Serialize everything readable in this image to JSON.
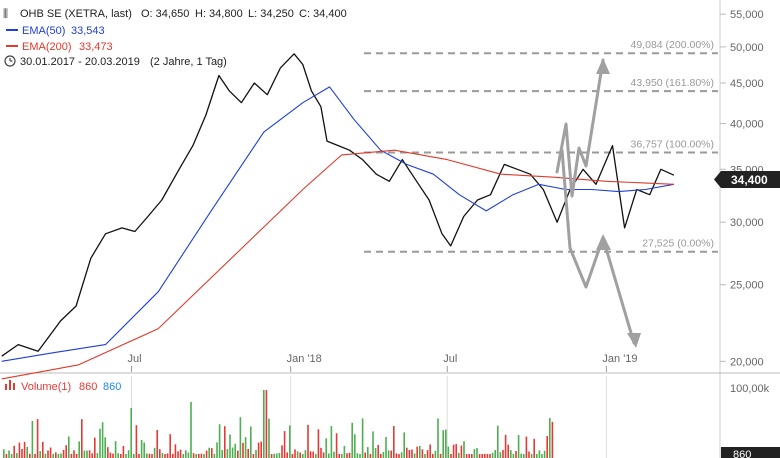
{
  "header": {
    "symbol": "OHB SE (XETRA, last)",
    "open": "O: 34,650",
    "high": "H: 34,800",
    "low": "L: 34,250",
    "close": "C: 34,400",
    "ema50_label": "EMA(50)",
    "ema50_value": "33,543",
    "ema200_label": "EMA(200)",
    "ema200_value": "33,473",
    "range": "30.01.2017 - 20.03.2019",
    "period": "(2 Jahre, 1 Tag)",
    "icon_chart": "candlestick-icon",
    "icon_clock": "clock-icon"
  },
  "last_price_badge": "34,400",
  "volume": {
    "label": "Volume(1)",
    "value_red": "860",
    "value_blue": "860",
    "axis_top": "100,00k",
    "axis_badge": "860"
  },
  "colors": {
    "ema50": "#1f3fd6",
    "ema200": "#e03a2a",
    "price": "#111111",
    "fib_line": "#9a9a9a",
    "arrow": "#a0a0a0",
    "vol_up": "#4caf50",
    "vol_down": "#e53935",
    "badge_bg": "#222222"
  },
  "chart_data": {
    "type": "line",
    "title": "OHB SE (XETRA, last)",
    "x_ticks": [
      "Jul",
      "Jan '18",
      "Jul",
      "Jan '19"
    ],
    "y_scale": "log",
    "y_ticks": [
      "55,000",
      "50,000",
      "45,000",
      "40,000",
      "35,000",
      "30,000",
      "25,000",
      "20,000"
    ],
    "ylim": [
      19.5,
      56
    ],
    "fib_levels": [
      {
        "label": "49,084 (200.00%)",
        "value": 49.084
      },
      {
        "label": "43,950 (161.80%)",
        "value": 43.95
      },
      {
        "label": "36,757 (100.00%)",
        "value": 36.757
      },
      {
        "label": "27,525 (0.00%)",
        "value": 27.525
      }
    ],
    "series": [
      {
        "name": "OHB SE",
        "x": [
          "2017-02-01",
          "2017-02-20",
          "2017-03-15",
          "2017-04-10",
          "2017-04-28",
          "2017-05-15",
          "2017-06-01",
          "2017-06-20",
          "2017-07-05",
          "2017-07-20",
          "2017-08-05",
          "2017-08-25",
          "2017-09-10",
          "2017-09-25",
          "2017-10-10",
          "2017-10-22",
          "2017-11-05",
          "2017-11-20",
          "2017-12-05",
          "2017-12-20",
          "2018-01-05",
          "2018-01-15",
          "2018-01-25",
          "2018-02-05",
          "2018-02-12",
          "2018-02-25",
          "2018-03-10",
          "2018-03-25",
          "2018-04-10",
          "2018-04-25",
          "2018-05-10",
          "2018-05-25",
          "2018-06-10",
          "2018-06-25",
          "2018-07-05",
          "2018-07-20",
          "2018-08-05",
          "2018-08-20",
          "2018-09-05",
          "2018-09-20",
          "2018-10-05",
          "2018-10-20",
          "2018-11-05",
          "2018-11-20",
          "2018-12-05",
          "2018-12-20",
          "2019-01-08",
          "2019-01-22",
          "2019-02-05",
          "2019-02-20",
          "2019-03-05",
          "2019-03-20"
        ],
        "values": [
          20.3,
          21.0,
          20.6,
          22.5,
          23.5,
          27.0,
          29.0,
          29.5,
          29.2,
          30.5,
          32.0,
          35.0,
          37.5,
          41.0,
          46.0,
          44.0,
          42.5,
          45.0,
          43.5,
          47.0,
          49.0,
          47.5,
          44.0,
          42.0,
          38.0,
          37.5,
          37.0,
          36.0,
          34.5,
          33.8,
          36.0,
          34.0,
          32.0,
          29.0,
          28.0,
          30.5,
          32.0,
          32.5,
          35.5,
          35.0,
          34.5,
          33.0,
          30.0,
          33.0,
          35.0,
          33.5,
          37.5,
          29.5,
          33.0,
          32.5,
          35.0,
          34.4
        ]
      },
      {
        "name": "EMA(50)",
        "x": [
          "2017-02-01",
          "2017-04-01",
          "2017-06-01",
          "2017-08-01",
          "2017-10-01",
          "2017-12-01",
          "2018-01-15",
          "2018-02-15",
          "2018-03-15",
          "2018-04-15",
          "2018-05-15",
          "2018-06-15",
          "2018-07-15",
          "2018-08-15",
          "2018-09-15",
          "2018-10-15",
          "2018-11-15",
          "2018-12-15",
          "2019-01-15",
          "2019-02-15",
          "2019-03-20"
        ],
        "values": [
          20.0,
          20.5,
          21.0,
          24.5,
          31.0,
          39.0,
          42.5,
          44.5,
          40.5,
          37.0,
          35.5,
          34.5,
          32.5,
          31.0,
          32.5,
          33.5,
          33.0,
          33.0,
          32.8,
          33.0,
          33.5
        ]
      },
      {
        "name": "EMA(200)",
        "x": [
          "2017-02-01",
          "2017-05-01",
          "2017-08-01",
          "2017-11-01",
          "2018-01-15",
          "2018-03-01",
          "2018-05-01",
          "2018-07-01",
          "2018-09-01",
          "2018-11-01",
          "2019-01-01",
          "2019-03-20"
        ],
        "values": [
          19.0,
          19.8,
          22.0,
          27.5,
          33.0,
          36.5,
          37.0,
          36.0,
          34.5,
          34.2,
          33.8,
          33.5
        ]
      }
    ]
  }
}
